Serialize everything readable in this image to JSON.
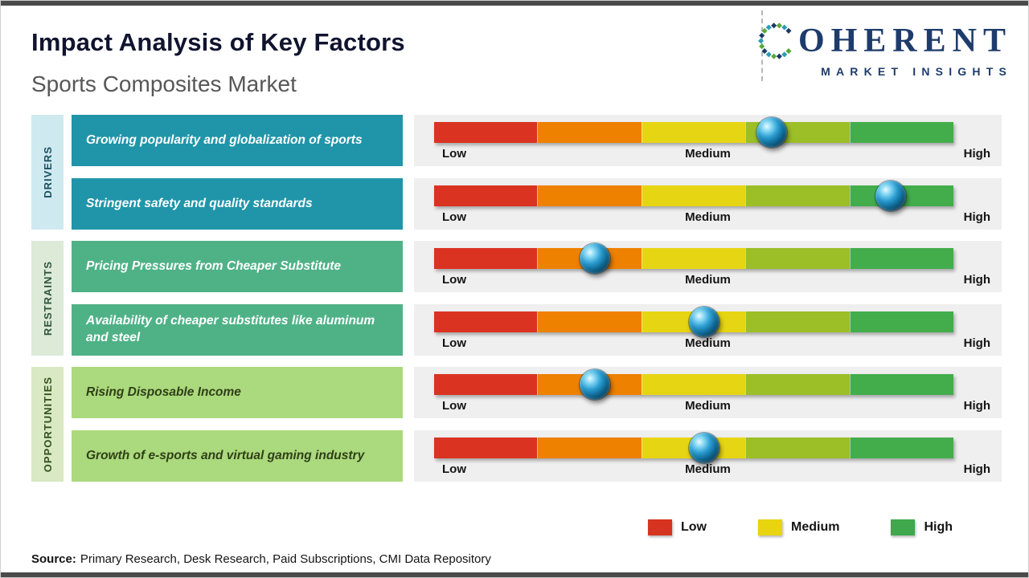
{
  "header": {
    "title": "Impact Analysis of Key Factors",
    "subtitle": "Sports Composites Market"
  },
  "logo": {
    "brand": "COHERENT",
    "brand_rest": "OHERENT",
    "tagline": "MARKET INSIGHTS"
  },
  "groups": [
    {
      "label": "DRIVERS"
    },
    {
      "label": "RESTRAINTS"
    },
    {
      "label": "OPPORTUNITIES"
    }
  ],
  "source": {
    "label": "Source:",
    "text": "Primary Research, Desk Research, Paid Subscriptions, CMI Data Repository"
  },
  "chart_data": {
    "type": "bar",
    "title": "Impact Analysis of Key Factors",
    "subtitle": "Sports Composites Market",
    "scale": {
      "low": "Low",
      "medium": "Medium",
      "high": "High",
      "range_pct": [
        0,
        100
      ]
    },
    "legend_position": "bottom-right",
    "legend": [
      {
        "label": "Low",
        "color": "#d63420"
      },
      {
        "label": "Medium",
        "color": "#e8d40f"
      },
      {
        "label": "High",
        "color": "#3fa84c"
      }
    ],
    "bar_segment_colors": [
      "#da3322",
      "#ee8100",
      "#e6d513",
      "#9cbe27",
      "#43ad4c"
    ],
    "items": [
      {
        "group": "Drivers",
        "factor": "Growing popularity and globalization of sports",
        "impact_pct": 65,
        "impact_level": "Medium-High"
      },
      {
        "group": "Drivers",
        "factor": "Stringent safety and quality standards",
        "impact_pct": 88,
        "impact_level": "High"
      },
      {
        "group": "Restraints",
        "factor": "Pricing Pressures from Cheaper Substitute",
        "impact_pct": 31,
        "impact_level": "Low-Medium"
      },
      {
        "group": "Restraints",
        "factor": "Availability of cheaper substitutes like aluminum and steel",
        "impact_pct": 52,
        "impact_level": "Medium"
      },
      {
        "group": "Opportunities",
        "factor": "Rising Disposable Income",
        "impact_pct": 31,
        "impact_level": "Low-Medium"
      },
      {
        "group": "Opportunities",
        "factor": "Growth of e-sports and virtual gaming industry",
        "impact_pct": 52,
        "impact_level": "Medium"
      }
    ]
  },
  "colors": {
    "drivers_box": "#2095a9",
    "restraints_box": "#4fb287",
    "opportunities_box": "#abd97d",
    "drivers_sidebar": "#cfe9f0",
    "restraints_sidebar": "#dcead7",
    "opportunities_sidebar": "#d9e9c3",
    "logo_navy": "#1e3c6b",
    "bar_track": "#efefef"
  }
}
